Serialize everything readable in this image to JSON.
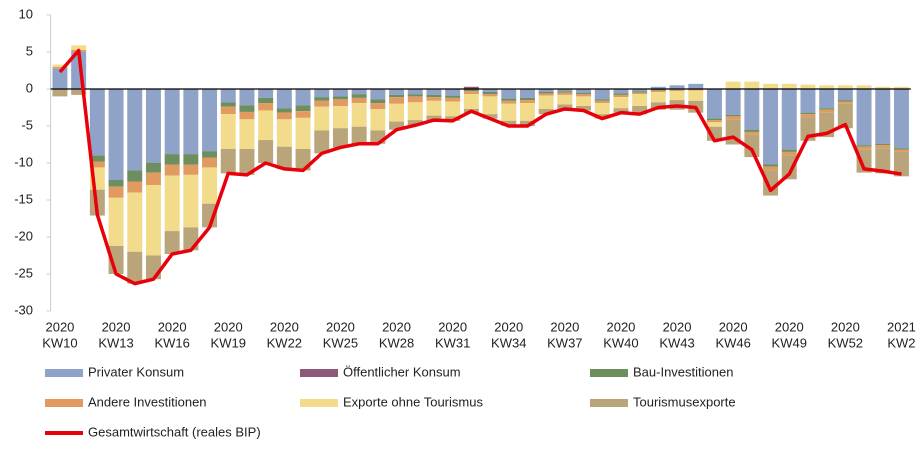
{
  "chart_data": {
    "type": "bar",
    "stacked": true,
    "categories": [
      {
        "year": "2020",
        "week": "KW10"
      },
      null,
      null,
      {
        "year": "2020",
        "week": "KW13"
      },
      null,
      null,
      {
        "year": "2020",
        "week": "KW16"
      },
      null,
      null,
      {
        "year": "2020",
        "week": "KW19"
      },
      null,
      null,
      {
        "year": "2020",
        "week": "KW22"
      },
      null,
      null,
      {
        "year": "2020",
        "week": "KW25"
      },
      null,
      null,
      {
        "year": "2020",
        "week": "KW28"
      },
      null,
      null,
      {
        "year": "2020",
        "week": "KW31"
      },
      null,
      null,
      {
        "year": "2020",
        "week": "KW34"
      },
      null,
      null,
      {
        "year": "2020",
        "week": "KW37"
      },
      null,
      null,
      {
        "year": "2020",
        "week": "KW40"
      },
      null,
      null,
      {
        "year": "2020",
        "week": "KW43"
      },
      null,
      null,
      {
        "year": "2020",
        "week": "KW46"
      },
      null,
      null,
      {
        "year": "2020",
        "week": "KW49"
      },
      null,
      null,
      {
        "year": "2020",
        "week": "KW52"
      },
      null,
      null,
      {
        "year": "2021",
        "week": "KW2"
      }
    ],
    "ylim": [
      -30,
      10
    ],
    "yticks": [
      -30,
      -25,
      -20,
      -15,
      -10,
      -5,
      0,
      5,
      10
    ],
    "series": [
      {
        "name": "Privater Konsum",
        "color": "#8fa3c8",
        "values": [
          2.8,
          5,
          -9,
          -12.3,
          -11,
          -10,
          -8.8,
          -8.8,
          -8.4,
          -1.8,
          -2.2,
          -1.2,
          -2.6,
          -2.2,
          -1.1,
          -1,
          -0.7,
          -1.4,
          -0.8,
          -0.7,
          -0.8,
          -0.9,
          0,
          -0.4,
          -1.3,
          -1.2,
          -0.4,
          -0.3,
          -0.5,
          -1.4,
          -0.6,
          -0.3,
          0.3,
          0.5,
          0.7,
          -4,
          -3.5,
          -5.5,
          -10.2,
          -8.2,
          -3.2,
          -2.6,
          -1.5,
          -7.6,
          -7.4,
          -8
        ]
      },
      {
        "name": "Öffentlicher Konsum",
        "color": "#8a5a78",
        "values": [
          0,
          0,
          0,
          0,
          0,
          0,
          0,
          0,
          0,
          0,
          0,
          0,
          0,
          0,
          0,
          0,
          0,
          0,
          0,
          0,
          0,
          0,
          0.3,
          0,
          0,
          0,
          0,
          0,
          0,
          0,
          0,
          0,
          0,
          0,
          0,
          0,
          0,
          0,
          0,
          0,
          0,
          0,
          0,
          0,
          0,
          0
        ]
      },
      {
        "name": "Bau-Investitionen",
        "color": "#6d8e5e",
        "values": [
          0,
          0,
          -0.8,
          -0.9,
          -1.5,
          -1.3,
          -1.4,
          -1.4,
          -0.9,
          -0.6,
          -0.9,
          -0.7,
          -0.6,
          -0.8,
          -0.5,
          -0.4,
          -0.5,
          -0.5,
          -0.3,
          -0.3,
          -0.3,
          -0.3,
          -0.3,
          -0.3,
          -0.3,
          -0.3,
          -0.2,
          -0.2,
          -0.2,
          -0.2,
          -0.2,
          -0.2,
          -0.2,
          -0.1,
          0,
          -0.2,
          -0.2,
          -0.3,
          -0.3,
          -0.3,
          -0.2,
          -0.2,
          -0.2,
          -0.2,
          -0.2,
          -0.2
        ]
      },
      {
        "name": "Andere Investitionen",
        "color": "#e19a60",
        "values": [
          0.2,
          0.3,
          -0.8,
          -1.5,
          -1.5,
          -1.7,
          -1.5,
          -1.4,
          -1.3,
          -1,
          -1,
          -1,
          -0.9,
          -0.9,
          -0.8,
          -0.9,
          -0.7,
          -0.8,
          -0.9,
          -0.8,
          -0.5,
          -0.5,
          -0.4,
          -0.3,
          -0.4,
          -0.4,
          -0.3,
          -0.3,
          -0.3,
          -0.3,
          -0.3,
          -0.2,
          -0.2,
          -0.2,
          -0.2,
          -0.3,
          -0.4,
          -0.4,
          -0.5,
          -0.5,
          -0.4,
          -0.4,
          -0.3,
          -0.4,
          -0.4,
          -0.3
        ]
      },
      {
        "name": "Exporte ohne Tourismus",
        "color": "#f2dc8c",
        "values": [
          0.3,
          0.6,
          -3,
          -6.5,
          -8,
          -9.5,
          -7.5,
          -7.1,
          -4.9,
          -4.7,
          -4,
          -4,
          -3.7,
          -4.2,
          -3.2,
          -3,
          -3.2,
          -2.9,
          -2.4,
          -2.4,
          -2,
          -2,
          -2,
          -2.4,
          -2.3,
          -2.4,
          -1.8,
          -1.3,
          -1.3,
          -1.5,
          -1.5,
          -1.6,
          -1.4,
          -1.2,
          -1.4,
          -0.6,
          1,
          1,
          0.7,
          0.7,
          0.6,
          0.5,
          0.5,
          0.5,
          0.3,
          0.3
        ]
      },
      {
        "name": "Tourismusexporte",
        "color": "#b9a579",
        "values": [
          -1,
          -0.8,
          -3.5,
          -3.8,
          -4.3,
          -3.2,
          -3.1,
          -3.1,
          -3.2,
          -3.3,
          -3.5,
          -3.1,
          -3,
          -2.9,
          -3.1,
          -2.6,
          -2.3,
          -1.8,
          -1.1,
          -0.7,
          -0.6,
          -0.6,
          -0.6,
          -0.6,
          -0.7,
          -0.7,
          -0.7,
          -0.6,
          -0.6,
          -0.6,
          -0.6,
          -1.1,
          -1,
          -1.3,
          -1.6,
          -1.9,
          -3.4,
          -3,
          -3.4,
          -3.2,
          -3.2,
          -3.3,
          -3.3,
          -3.1,
          -3.4,
          -3.3
        ]
      }
    ],
    "line": {
      "name": "Gesamtwirtschaft (reales BIP)",
      "color": "#e8000b",
      "values": [
        2.3,
        5.2,
        -17,
        -25,
        -26.3,
        -25.7,
        -22.3,
        -21.8,
        -18.7,
        -11.4,
        -11.6,
        -10,
        -10.8,
        -11,
        -8.7,
        -7.9,
        -7.4,
        -7.4,
        -5.5,
        -4.9,
        -4.2,
        -4.3,
        -3,
        -4,
        -5,
        -5,
        -3.4,
        -2.7,
        -2.9,
        -4,
        -3.2,
        -3.4,
        -2.5,
        -2.3,
        -2.5,
        -7,
        -6.5,
        -8.2,
        -13.7,
        -11.5,
        -6.4,
        -6,
        -4.8,
        -10.8,
        -11.1,
        -11.5
      ]
    }
  }
}
